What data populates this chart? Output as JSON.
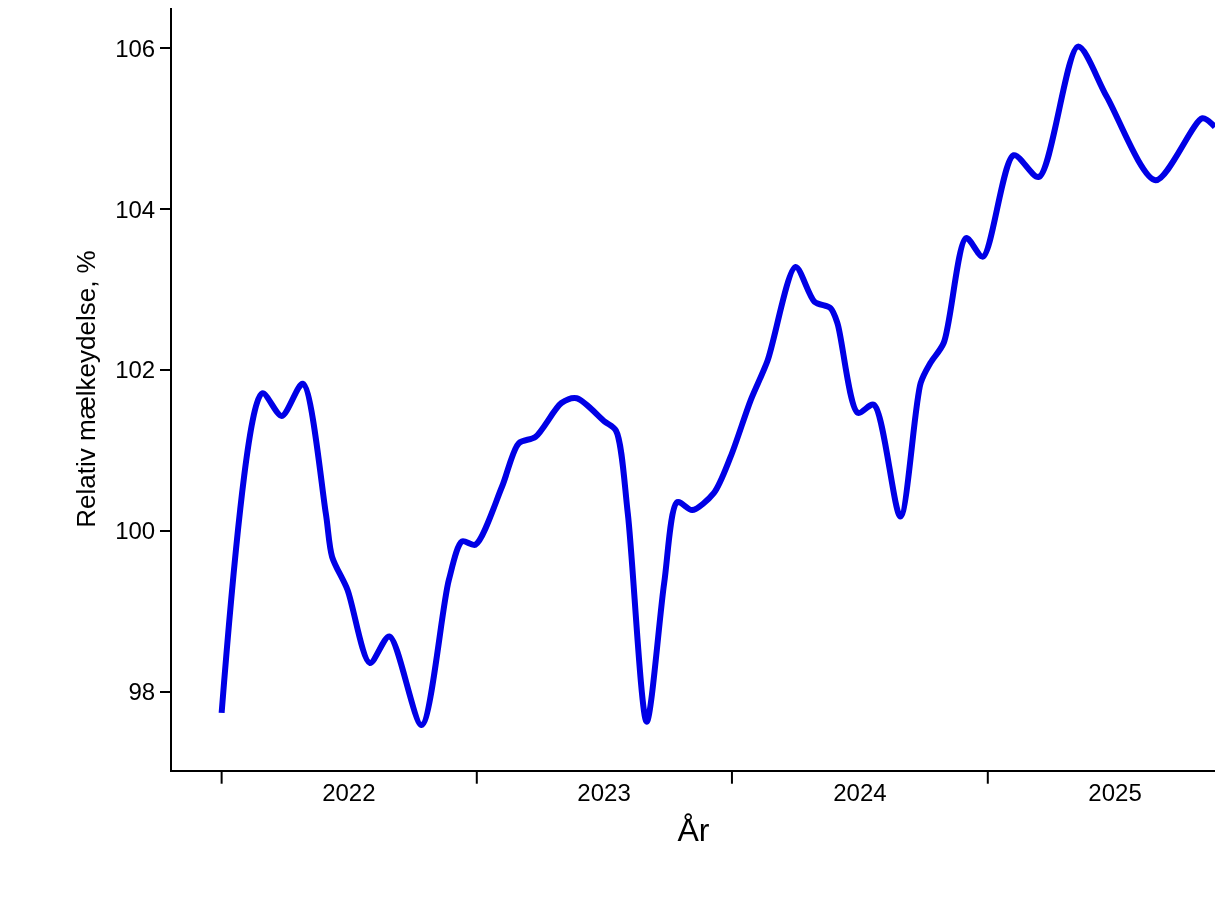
{
  "chart_data": {
    "type": "line",
    "xlabel": "År",
    "ylabel": "Relativ mælkeydelse, %",
    "x": [
      "2022-01-01",
      "2022-02-28",
      "2022-03-28",
      "2022-04-27",
      "2022-05-30",
      "2022-06-08",
      "2022-06-30",
      "2022-08-01",
      "2022-08-29",
      "2022-10-14",
      "2022-11-22",
      "2022-12-11",
      "2022-12-30",
      "2023-02-06",
      "2023-03-02",
      "2023-03-26",
      "2023-05-02",
      "2023-05-24",
      "2023-07-03",
      "2023-07-19",
      "2023-08-05",
      "2023-09-01",
      "2023-09-26",
      "2023-10-15",
      "2023-11-05",
      "2023-12-06",
      "2023-12-30",
      "2024-01-28",
      "2024-02-21",
      "2024-04-01",
      "2024-04-28",
      "2024-05-21",
      "2024-05-31",
      "2024-06-29",
      "2024-07-22",
      "2024-08-29",
      "2024-09-27",
      "2024-10-11",
      "2024-10-30",
      "2024-12-01",
      "2024-12-25",
      "2025-02-07",
      "2025-03-15",
      "2025-05-10",
      "2025-06-20",
      "2025-08-29",
      "2025-11-04",
      "2025-11-22"
    ],
    "series": [
      {
        "color": "#0000e6",
        "values": [
          97.74,
          101.71,
          101.43,
          101.83,
          100.22,
          99.68,
          99.27,
          98.36,
          98.69,
          97.59,
          99.39,
          99.87,
          99.83,
          100.55,
          101.09,
          101.17,
          101.59,
          101.65,
          101.36,
          101.25,
          100.22,
          97.63,
          99.35,
          100.36,
          100.26,
          100.47,
          100.92,
          101.63,
          102.12,
          103.28,
          102.85,
          102.77,
          102.58,
          101.47,
          101.57,
          100.18,
          101.84,
          102.09,
          102.34,
          103.64,
          103.41,
          104.67,
          104.4,
          106.02,
          105.4,
          104.36,
          105.13,
          105.02
        ]
      }
    ],
    "xlim": [
      "2021-10-22",
      "2025-11-22"
    ],
    "xticks": [
      {
        "value": "2022-01-01",
        "label": null
      },
      {
        "value": "2022-07-02",
        "label": "2022"
      },
      {
        "value": "2023-01-01",
        "label": null
      },
      {
        "value": "2023-07-02",
        "label": "2023"
      },
      {
        "value": "2024-01-01",
        "label": null
      },
      {
        "value": "2024-07-02",
        "label": "2024"
      },
      {
        "value": "2025-01-01",
        "label": null
      },
      {
        "value": "2025-07-02",
        "label": "2025"
      }
    ],
    "ylim": [
      97.03,
      106.5
    ],
    "yticks": [
      98,
      100,
      102,
      104,
      106
    ],
    "marker": "none",
    "line_style": "solid"
  }
}
